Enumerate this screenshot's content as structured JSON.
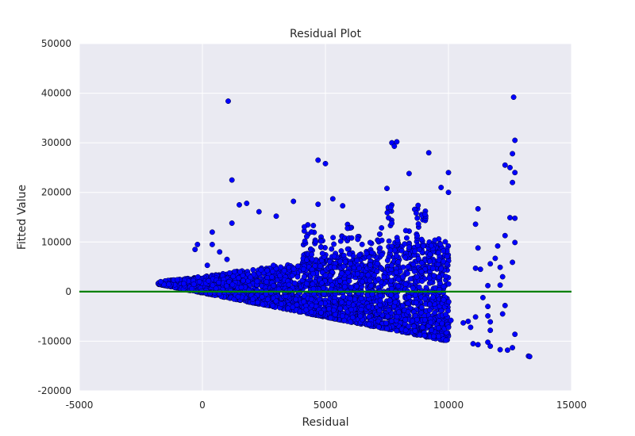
{
  "chart_data": {
    "type": "scatter",
    "title": "Residual Plot",
    "xlabel": "Residual",
    "ylabel": "Fitted Value",
    "xlim": [
      -5000,
      15000
    ],
    "ylim": [
      -20000,
      50000
    ],
    "xticks": [
      -5000,
      0,
      5000,
      10000,
      15000
    ],
    "yticks": [
      -20000,
      -10000,
      0,
      10000,
      20000,
      30000,
      40000,
      50000
    ],
    "grid": true,
    "reference_line": {
      "y": 0,
      "color": "#008000"
    },
    "colors": {
      "plot_background": "#EAEAF2",
      "grid": "#FFFFFF",
      "point_fill": "#0000FF",
      "point_edge": "#000033"
    },
    "outliers": [
      [
        1050,
        38400
      ],
      [
        12650,
        39200
      ],
      [
        1200,
        22500
      ],
      [
        1200,
        13800
      ],
      [
        1800,
        17800
      ],
      [
        1500,
        17500
      ],
      [
        2300,
        16100
      ],
      [
        3000,
        15200
      ],
      [
        3700,
        18200
      ],
      [
        4700,
        26500
      ],
      [
        5000,
        25800
      ],
      [
        5300,
        18700
      ],
      [
        4700,
        17600
      ],
      [
        5700,
        17300
      ],
      [
        7700,
        30000
      ],
      [
        7900,
        30200
      ],
      [
        9200,
        28000
      ],
      [
        7800,
        29300
      ],
      [
        7500,
        20800
      ],
      [
        8400,
        23800
      ],
      [
        9700,
        21000
      ],
      [
        10000,
        24000
      ],
      [
        10000,
        20000
      ],
      [
        11200,
        16700
      ],
      [
        12700,
        30500
      ],
      [
        12600,
        27800
      ],
      [
        12500,
        25000
      ],
      [
        12300,
        25500
      ],
      [
        12700,
        24000
      ],
      [
        12600,
        22000
      ],
      [
        12700,
        14800
      ],
      [
        12500,
        14900
      ],
      [
        12300,
        11300
      ],
      [
        12000,
        9200
      ],
      [
        11100,
        13600
      ],
      [
        11900,
        6700
      ],
      [
        11700,
        5600
      ],
      [
        12600,
        5900
      ],
      [
        12700,
        9900
      ],
      [
        12100,
        4900
      ],
      [
        11100,
        4700
      ],
      [
        11200,
        8800
      ],
      [
        11300,
        4500
      ],
      [
        12200,
        3000
      ],
      [
        12100,
        1300
      ],
      [
        11600,
        1200
      ],
      [
        11400,
        -1200
      ],
      [
        11600,
        -3000
      ],
      [
        11600,
        -4900
      ],
      [
        11100,
        -5100
      ],
      [
        12300,
        -2800
      ],
      [
        12200,
        -4500
      ],
      [
        11700,
        -6100
      ],
      [
        11700,
        -7800
      ],
      [
        10800,
        -6000
      ],
      [
        10600,
        -6300
      ],
      [
        10900,
        -7200
      ],
      [
        11000,
        -10500
      ],
      [
        11200,
        -10700
      ],
      [
        11600,
        -10200
      ],
      [
        11700,
        -11000
      ],
      [
        12100,
        -11700
      ],
      [
        12400,
        -11800
      ],
      [
        12600,
        -11300
      ],
      [
        12700,
        -8600
      ],
      [
        13250,
        -13000
      ],
      [
        13300,
        -13100
      ],
      [
        9900,
        -9800
      ],
      [
        9600,
        -9000
      ],
      [
        9400,
        -9000
      ],
      [
        10000,
        -7200
      ],
      [
        10100,
        -5800
      ],
      [
        200,
        5300
      ],
      [
        400,
        9500
      ],
      [
        1000,
        6500
      ],
      [
        400,
        12000
      ],
      [
        700,
        8000
      ],
      [
        -200,
        9500
      ],
      [
        -300,
        8500
      ]
    ]
  }
}
